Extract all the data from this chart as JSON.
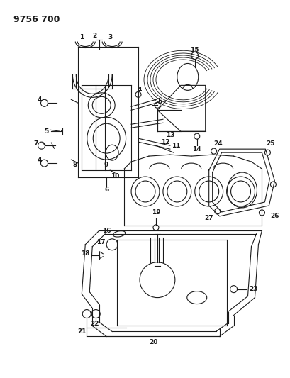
{
  "title": "9756 700",
  "bg_color": "#ffffff",
  "lc": "#1a1a1a",
  "title_fontsize": 9,
  "label_fontsize": 6.5,
  "fig_width": 4.1,
  "fig_height": 5.33,
  "dpi": 100
}
